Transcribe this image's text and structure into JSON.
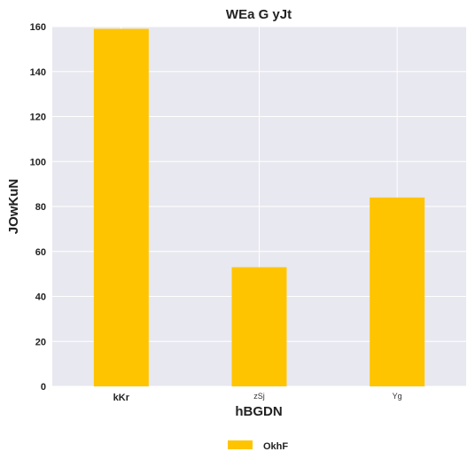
{
  "chart_data": {
    "type": "bar",
    "title": "WEa G  yJt",
    "xlabel": "hBGDN",
    "ylabel": "JOwKuN",
    "categories": [
      "kKr",
      "zSj",
      "Yg"
    ],
    "series": [
      {
        "name": "OkhF",
        "values": [
          159,
          53,
          84
        ],
        "color": "#ffc400"
      }
    ],
    "ylim": [
      0,
      160
    ],
    "yticks": [
      0,
      20,
      40,
      60,
      80,
      100,
      120,
      140,
      160
    ],
    "grid": true,
    "background": "#e8e8f0",
    "legend_position": "bottom-center"
  }
}
